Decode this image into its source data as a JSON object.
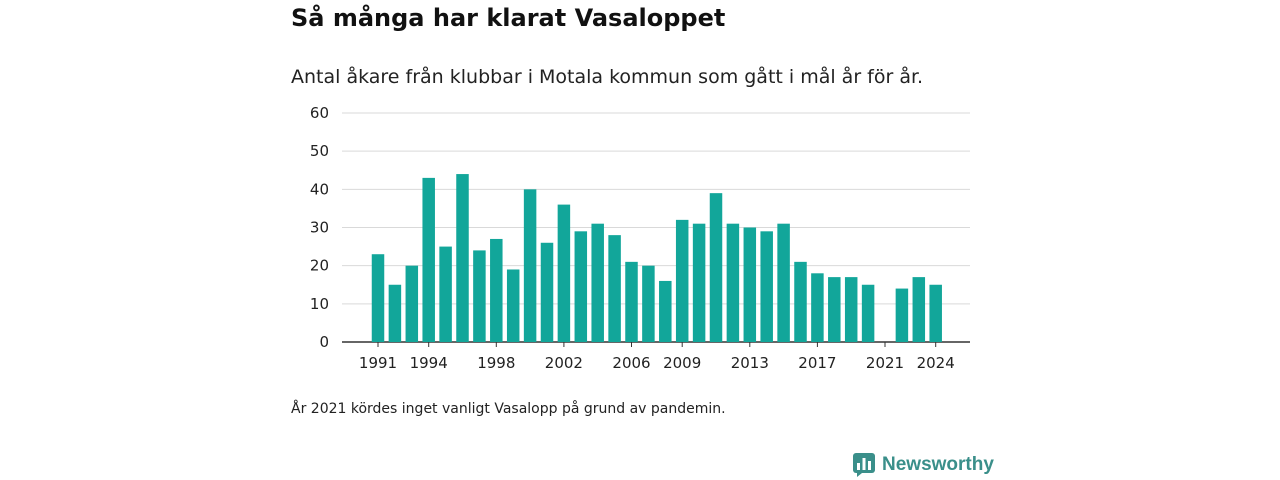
{
  "title": "Så många har klarat Vasaloppet",
  "subtitle": "Antal åkare från klubbar i Motala kommun som gått i mål år för år.",
  "footnote": "År 2021 kördes inget vanligt Vasalopp på grund av pandemin.",
  "brand": {
    "name": "Newsworthy",
    "icon": "newsworthy-logo-icon"
  },
  "colors": {
    "bar": "#12a69a",
    "grid": "#d9d9d9",
    "axis": "#333333"
  },
  "chart_data": {
    "type": "bar",
    "title": "Så många har klarat Vasaloppet",
    "categories": [
      "1991",
      "1992",
      "1993",
      "1994",
      "1995",
      "1996",
      "1997",
      "1998",
      "1999",
      "2000",
      "2001",
      "2002",
      "2003",
      "2004",
      "2005",
      "2006",
      "2007",
      "2008",
      "2009",
      "2010",
      "2011",
      "2012",
      "2013",
      "2014",
      "2015",
      "2016",
      "2017",
      "2018",
      "2019",
      "2020",
      "2021",
      "2022",
      "2023",
      "2024"
    ],
    "values": [
      23,
      15,
      20,
      43,
      25,
      44,
      24,
      27,
      19,
      40,
      26,
      36,
      29,
      31,
      28,
      21,
      20,
      16,
      32,
      31,
      39,
      31,
      30,
      29,
      31,
      21,
      18,
      17,
      17,
      15,
      null,
      14,
      17,
      15
    ],
    "x_tick_labels": [
      "1991",
      "1994",
      "1998",
      "2002",
      "2006",
      "2009",
      "2013",
      "2017",
      "2021",
      "2024"
    ],
    "y_ticks": [
      0,
      10,
      20,
      30,
      40,
      50,
      60
    ],
    "ylim": [
      0,
      60
    ],
    "xlabel": "",
    "ylabel": "",
    "grid": true
  }
}
